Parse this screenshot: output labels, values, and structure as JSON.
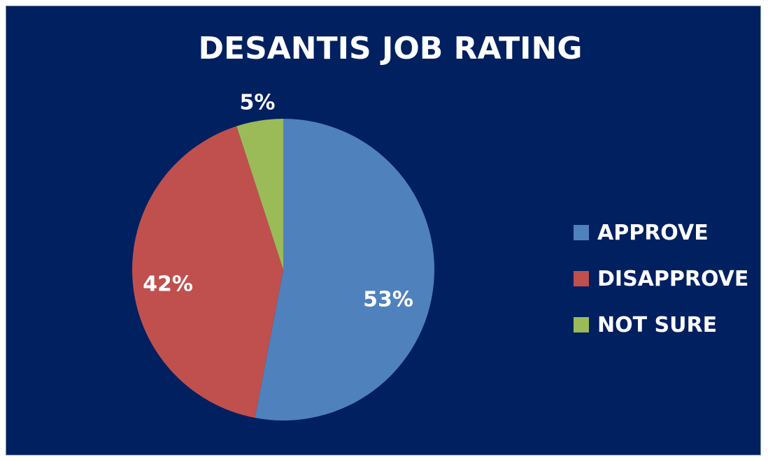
{
  "chart_data": {
    "type": "pie",
    "title": "DESANTIS JOB RATING",
    "categories": [
      "APPROVE",
      "DISAPPROVE",
      "NOT SURE"
    ],
    "values": [
      53,
      42,
      5
    ],
    "labels": [
      "53%",
      "42%",
      "5%"
    ],
    "colors": [
      "#4f81bd",
      "#c0504d",
      "#9bbb59"
    ],
    "legend_position": "right",
    "background": "#002060"
  }
}
